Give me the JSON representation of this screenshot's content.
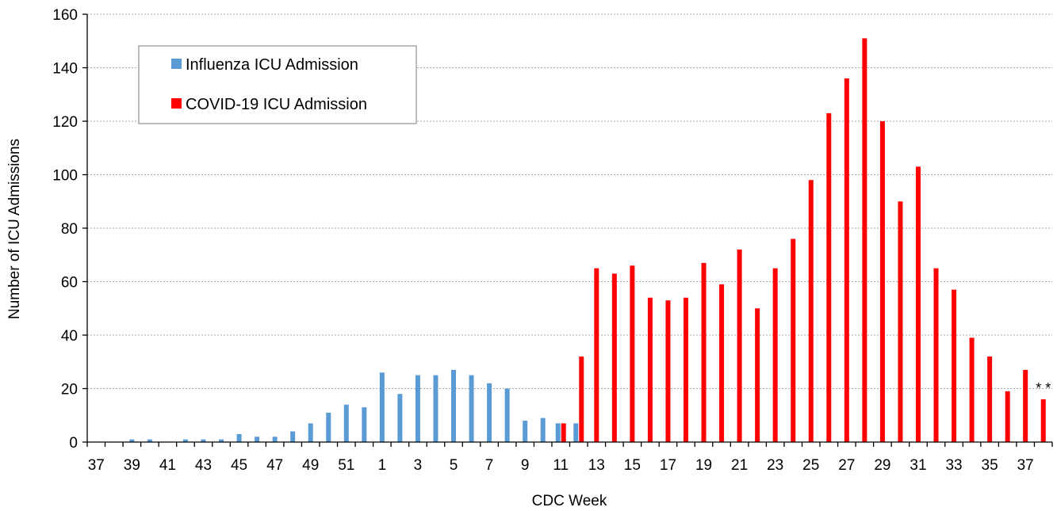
{
  "chart_data": {
    "type": "bar",
    "xlabel": "CDC Week",
    "ylabel": "Number of ICU Admissions",
    "ylim": [
      0,
      160
    ],
    "yticks": [
      0,
      20,
      40,
      60,
      80,
      100,
      120,
      140,
      160
    ],
    "grid": true,
    "legend_position": "top-left",
    "categories": [
      "37",
      "38",
      "39",
      "40",
      "41",
      "42",
      "43",
      "44",
      "45",
      "46",
      "47",
      "48",
      "49",
      "50",
      "51",
      "52",
      "1",
      "2",
      "3",
      "4",
      "5",
      "6",
      "7",
      "8",
      "9",
      "10",
      "11",
      "12",
      "13",
      "14",
      "15",
      "16",
      "17",
      "18",
      "19",
      "20",
      "21",
      "22",
      "23",
      "24",
      "25",
      "26",
      "27",
      "28",
      "29",
      "30",
      "31",
      "32",
      "33",
      "34",
      "35",
      "36",
      "37",
      "38"
    ],
    "tick_labels": [
      "37",
      "39",
      "41",
      "43",
      "45",
      "47",
      "49",
      "51",
      "1",
      "3",
      "5",
      "7",
      "9",
      "11",
      "13",
      "15",
      "17",
      "19",
      "21",
      "23",
      "25",
      "27",
      "29",
      "31",
      "33",
      "35",
      "37"
    ],
    "series": [
      {
        "name": "Influenza ICU Admission",
        "color": "#5b9bd5",
        "values": [
          0,
          0,
          1,
          1,
          0,
          1,
          1,
          1,
          3,
          2,
          2,
          4,
          7,
          11,
          14,
          13,
          26,
          18,
          25,
          25,
          27,
          25,
          22,
          20,
          8,
          9,
          7,
          7,
          null,
          null,
          null,
          null,
          null,
          null,
          null,
          null,
          null,
          null,
          null,
          null,
          null,
          null,
          null,
          null,
          null,
          null,
          null,
          null,
          null,
          null,
          null,
          null,
          null,
          null
        ]
      },
      {
        "name": "COVID-19 ICU Admission",
        "color": "#ff0000",
        "values": [
          null,
          null,
          null,
          null,
          null,
          null,
          null,
          null,
          null,
          null,
          null,
          null,
          null,
          null,
          null,
          null,
          null,
          null,
          null,
          null,
          null,
          null,
          null,
          null,
          null,
          null,
          7,
          32,
          65,
          63,
          66,
          54,
          53,
          54,
          67,
          59,
          72,
          50,
          65,
          76,
          98,
          123,
          136,
          151,
          120,
          90,
          103,
          65,
          57,
          39,
          32,
          19,
          27,
          16
        ]
      }
    ],
    "annotations": [
      {
        "text": "* *",
        "category_index": 53
      }
    ]
  }
}
